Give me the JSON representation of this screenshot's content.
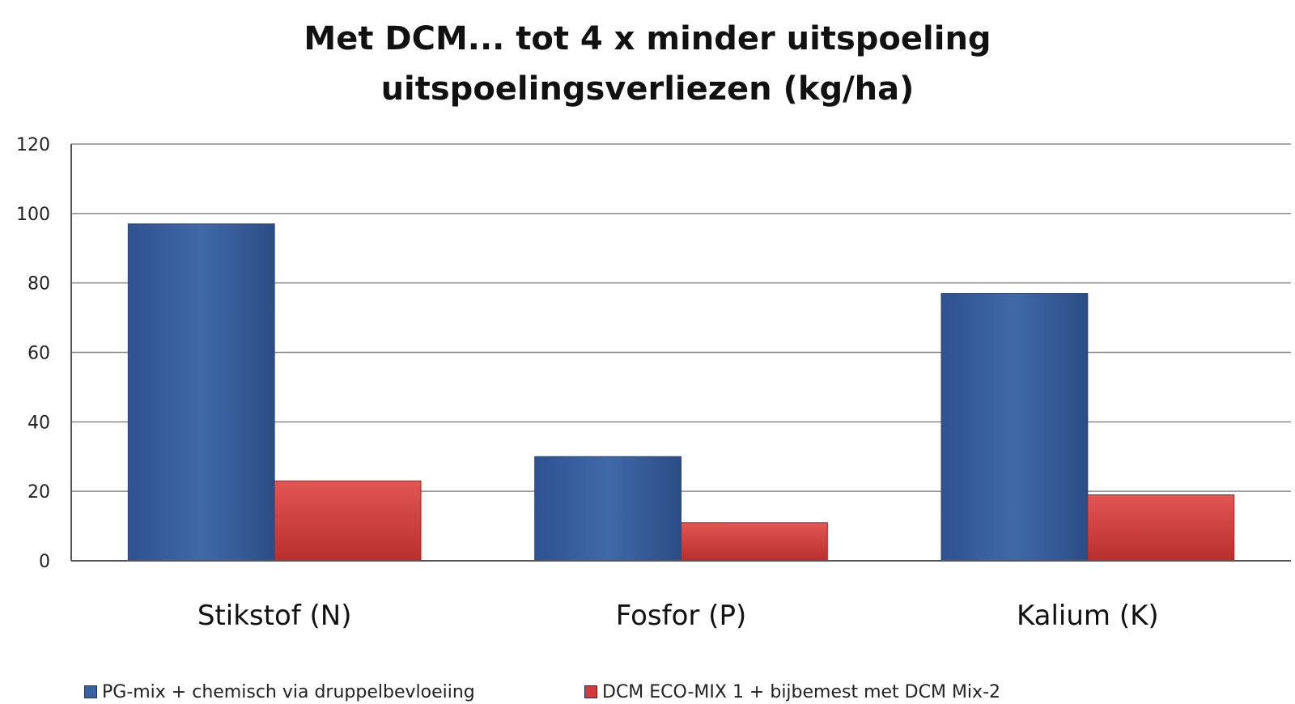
{
  "chart_data": {
    "type": "bar",
    "title_lines": [
      "Met DCM... tot 4 x minder uitspoeling",
      "uitspoelingsverliezen (kg/ha)"
    ],
    "xlabel": "",
    "ylabel": "",
    "categories": [
      "Stikstof (N)",
      "Fosfor (P)",
      "Kalium (K)"
    ],
    "series": [
      {
        "name": "PG-mix + chemisch via druppelbevloeiing",
        "color": "#3b62a0",
        "values": [
          97,
          30,
          77
        ]
      },
      {
        "name": "DCM ECO-MIX 1 + bijbemest met DCM Mix-2",
        "color": "#cf3c3a",
        "values": [
          23,
          11,
          19
        ]
      }
    ],
    "ylim": [
      0,
      120
    ],
    "yticks": [
      0,
      20,
      40,
      60,
      80,
      100,
      120
    ],
    "grid": true,
    "legend_position": "bottom"
  }
}
